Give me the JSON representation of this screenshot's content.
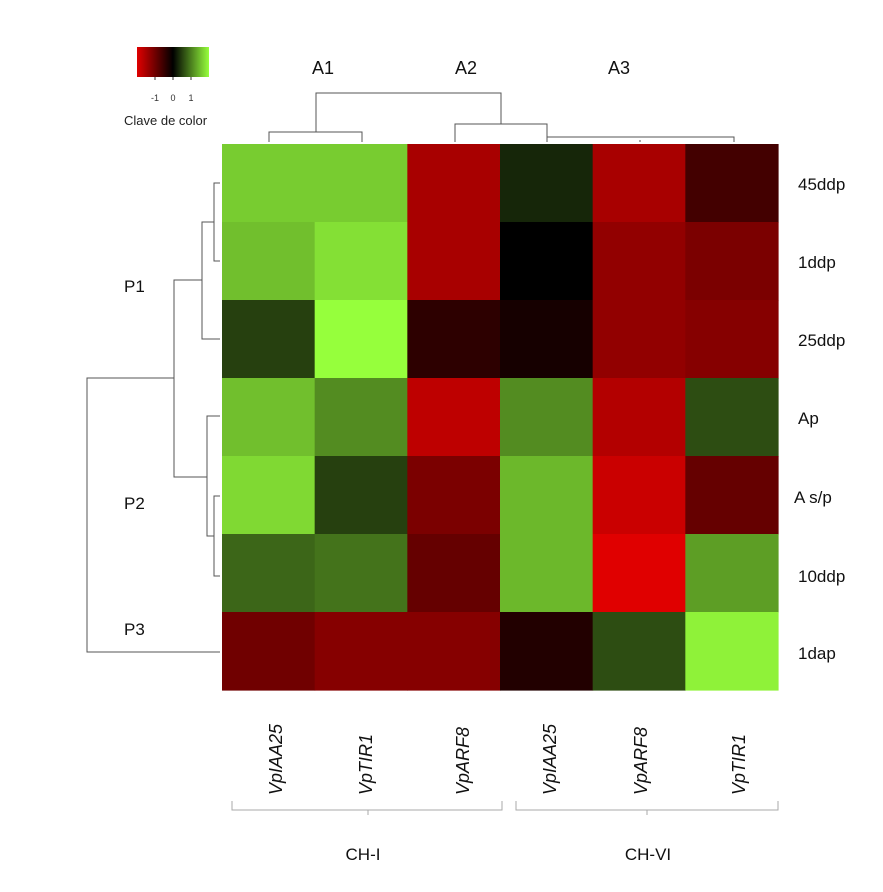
{
  "chart_data": {
    "type": "heatmap",
    "rows": [
      "45ddp",
      "1ddp",
      "25ddp",
      "Ap",
      "A s/p",
      "10ddp",
      "1dap"
    ],
    "columns": [
      "VpIAA25",
      "VpTIR1",
      "VpARF8",
      "VpIAA25",
      "VpARF8",
      "VpTIR1"
    ],
    "values": [
      [
        0.8,
        0.8,
        -0.75,
        0.15,
        -0.75,
        -0.3
      ],
      [
        0.75,
        0.88,
        -0.75,
        0.0,
        -0.65,
        -0.55
      ],
      [
        0.25,
        1.0,
        -0.2,
        -0.1,
        -0.65,
        -0.6
      ],
      [
        0.75,
        0.55,
        -0.85,
        0.55,
        -0.8,
        0.3
      ],
      [
        0.85,
        0.25,
        -0.55,
        0.72,
        -0.9,
        -0.45
      ],
      [
        0.4,
        0.45,
        -0.45,
        0.72,
        -1.0,
        0.62
      ],
      [
        -0.5,
        -0.6,
        -0.6,
        -0.15,
        0.3,
        0.95
      ]
    ],
    "row_groups": [
      "P1",
      "P2",
      "P3"
    ],
    "column_clusters": [
      "A1",
      "A2",
      "A3"
    ],
    "column_groups": [
      "CH-I",
      "CH-VI"
    ],
    "color_key": {
      "title": "Clave de color",
      "ticks": [
        "-1",
        "0",
        "1"
      ],
      "range": [
        -1,
        1
      ],
      "colors": {
        "low": "#e00000",
        "mid": "#000000",
        "high": "#96ff3c"
      }
    }
  }
}
